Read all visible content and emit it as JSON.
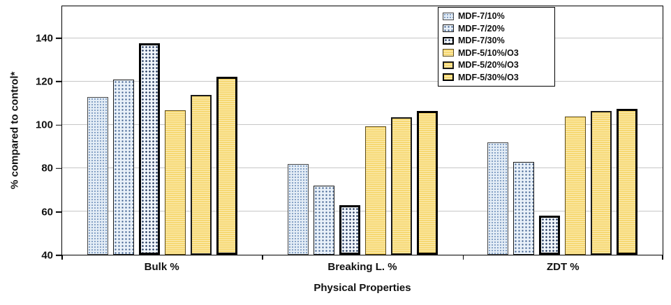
{
  "chart_data": {
    "type": "bar",
    "title": "",
    "xlabel": "Physical Properties",
    "ylabel": "% compared to control*",
    "categories": [
      "Bulk %",
      "Breaking L. %",
      "ZDT %"
    ],
    "series": [
      {
        "name": "MDF-7/10%",
        "values": [
          113,
          82,
          92
        ]
      },
      {
        "name": "MDF-7/20%",
        "values": [
          121,
          72,
          83
        ]
      },
      {
        "name": "MDF-7/30%",
        "values": [
          138,
          63,
          58
        ]
      },
      {
        "name": "MDF-5/10%/O3",
        "values": [
          107,
          99.5,
          104
        ]
      },
      {
        "name": "MDF-5/20%/O3",
        "values": [
          114,
          103.5,
          106.5
        ]
      },
      {
        "name": "MDF-5/30%/O3",
        "values": [
          122.5,
          106.5,
          107.5
        ]
      }
    ],
    "ylim": [
      40,
      155
    ],
    "yticks": [
      40,
      60,
      80,
      100,
      120,
      140
    ],
    "grid": true,
    "legend_position": "top-right",
    "colors": {
      "dotted_fill": "#e9f1f9",
      "dotted_dot": "#3d5e8e",
      "yellow_fill": "#f6d873",
      "gridline": "#c6c6c6",
      "frame": "#000000"
    }
  }
}
